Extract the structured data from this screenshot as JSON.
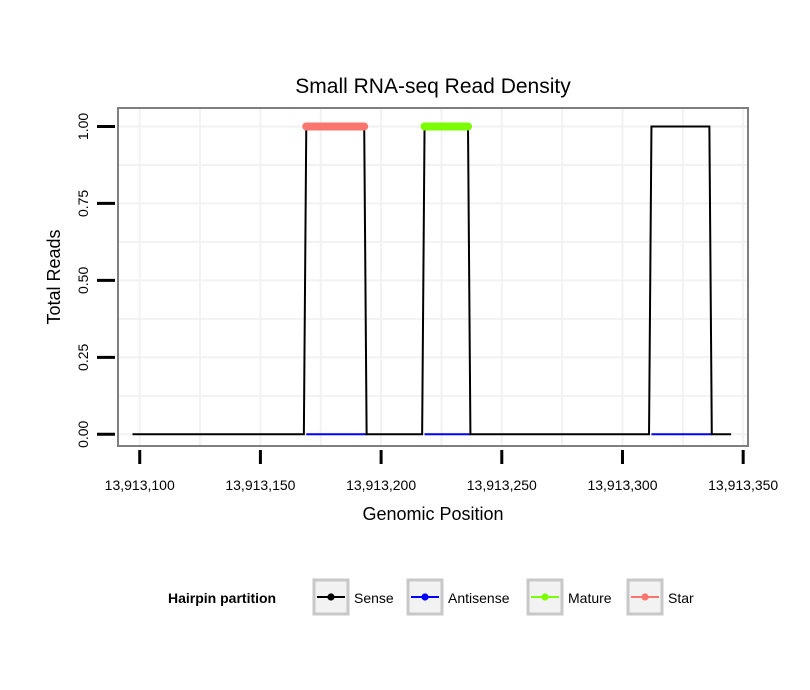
{
  "chart_data": {
    "type": "line",
    "title": "Small RNA-seq Read Density",
    "xlabel": "Genomic Position",
    "ylabel": "Total Reads",
    "xlim": [
      13913091,
      13913352
    ],
    "ylim": [
      -0.038,
      1.06
    ],
    "x_ticks": [
      13913100,
      13913150,
      13913200,
      13913250,
      13913300,
      13913350
    ],
    "x_tick_labels": [
      "13,913,100",
      "13,913,150",
      "13,913,200",
      "13,913,250",
      "13,913,300",
      "13,913,350"
    ],
    "y_ticks": [
      0,
      0.25,
      0.5,
      0.75,
      1
    ],
    "y_tick_labels": [
      "0.00",
      "0.25",
      "0.50",
      "0.75",
      "1.00"
    ],
    "grid": true,
    "legend": {
      "title": "Hairpin partition",
      "position": "bottom",
      "entries": [
        "Sense",
        "Antisense",
        "Mature",
        "Star"
      ]
    },
    "series": [
      {
        "name": "Sense",
        "color": "#000000",
        "style": "thin",
        "x": [
          13913097,
          13913168,
          13913169,
          13913193,
          13913194,
          13913217,
          13913218,
          13913236,
          13913237,
          13913311,
          13913312,
          13913336,
          13913337,
          13913345
        ],
        "values": [
          0,
          0,
          1,
          1,
          0,
          0,
          1,
          1,
          0,
          0,
          1,
          1,
          0,
          0
        ]
      },
      {
        "name": "Antisense",
        "color": "#0000ff",
        "style": "thin",
        "x": [
          13913169,
          13913194,
          13913218,
          13913237,
          13913312,
          13913337
        ],
        "values": [
          0,
          0,
          0,
          0,
          0,
          0
        ],
        "segments": [
          [
            0,
            1
          ],
          [
            2,
            3
          ],
          [
            4,
            5
          ]
        ]
      },
      {
        "name": "Mature",
        "color": "#7cfc00",
        "style": "thick",
        "x": [
          13913218,
          13913236
        ],
        "values": [
          1,
          1
        ]
      },
      {
        "name": "Star",
        "color": "#f8766d",
        "style": "thick",
        "x": [
          13913169,
          13913193
        ],
        "values": [
          1,
          1
        ]
      }
    ]
  }
}
